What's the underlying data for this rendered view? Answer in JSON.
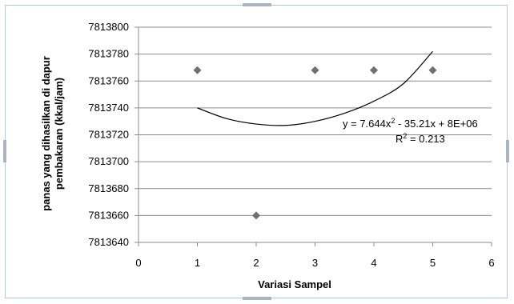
{
  "chart_data": {
    "type": "scatter",
    "title": "",
    "xlabel": "Variasi Sampel",
    "ylabel_line1": "panas yang dihasilkan  di dapur",
    "ylabel_line2": "pembakaran (kkal/jam)",
    "xlim": [
      0,
      6
    ],
    "ylim": [
      7813640,
      7813800
    ],
    "xticks": [
      0,
      1,
      2,
      3,
      4,
      5,
      6
    ],
    "yticks": [
      7813640,
      7813660,
      7813680,
      7813700,
      7813720,
      7813740,
      7813760,
      7813780,
      7813800
    ],
    "grid": "horizontal",
    "legend": "none",
    "marker": "diamond",
    "marker_color": "#707070",
    "points": [
      {
        "x": 1,
        "y": 7813768
      },
      {
        "x": 2,
        "y": 7813660
      },
      {
        "x": 3,
        "y": 7813768
      },
      {
        "x": 4,
        "y": 7813768
      },
      {
        "x": 5,
        "y": 7813768
      }
    ],
    "trendline": {
      "type": "polynomial",
      "order": 2,
      "equation_prefix": "y = 7.644x",
      "equation_exp": "2",
      "equation_suffix": " - 35.21x + 8E+06",
      "r2_prefix": "R",
      "r2_exp": "2",
      "r2_suffix": " = 0.213",
      "samples": [
        {
          "x": 1.0,
          "y": 7813740
        },
        {
          "x": 1.5,
          "y": 7813732
        },
        {
          "x": 2.0,
          "y": 7813728
        },
        {
          "x": 2.5,
          "y": 7813727
        },
        {
          "x": 3.0,
          "y": 7813730
        },
        {
          "x": 3.5,
          "y": 7813736
        },
        {
          "x": 4.0,
          "y": 7813745
        },
        {
          "x": 4.5,
          "y": 7813758
        },
        {
          "x": 5.0,
          "y": 7813782
        }
      ]
    }
  }
}
